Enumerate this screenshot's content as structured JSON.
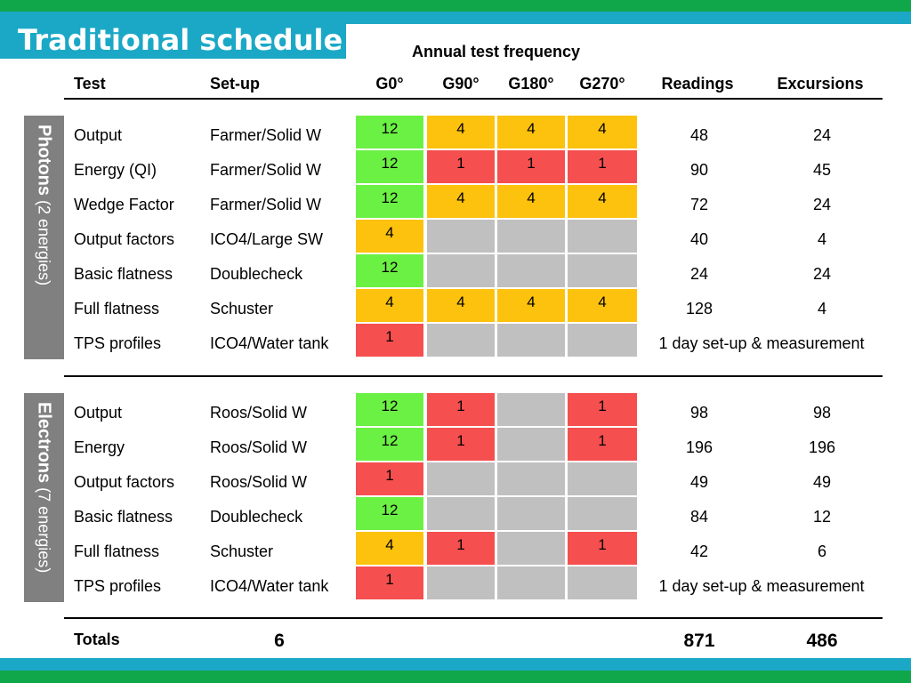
{
  "title": "Traditional schedule",
  "freq_title": "Annual test frequency",
  "headers": {
    "test": "Test",
    "setup": "Set-up",
    "g0": "G0°",
    "g90": "G90°",
    "g180": "G180°",
    "g270": "G270°",
    "readings": "Readings",
    "excursions": "Excursions"
  },
  "colors": {
    "green": "#6bf044",
    "yellow": "#fdc20d",
    "red": "#f54f4f",
    "gray": "#c0c0c0",
    "teal": "#1ba8c6",
    "brand_green": "#10a64a",
    "side": "#808080"
  },
  "photons": {
    "label": "Photons",
    "sub": "(2 energies)",
    "rows": [
      {
        "test": "Output",
        "setup": "Farmer/Solid W",
        "freq": [
          [
            "12",
            "green"
          ],
          [
            "4",
            "yellow"
          ],
          [
            "4",
            "yellow"
          ],
          [
            "4",
            "yellow"
          ]
        ],
        "readings": "48",
        "excursions": "24"
      },
      {
        "test": "Energy (QI)",
        "setup": "Farmer/Solid W",
        "freq": [
          [
            "12",
            "green"
          ],
          [
            "1",
            "red"
          ],
          [
            "1",
            "red"
          ],
          [
            "1",
            "red"
          ]
        ],
        "readings": "90",
        "excursions": "45"
      },
      {
        "test": "Wedge Factor",
        "setup": "Farmer/Solid W",
        "freq": [
          [
            "12",
            "green"
          ],
          [
            "4",
            "yellow"
          ],
          [
            "4",
            "yellow"
          ],
          [
            "4",
            "yellow"
          ]
        ],
        "readings": "72",
        "excursions": "24"
      },
      {
        "test": "Output factors",
        "setup": "ICO4/Large SW",
        "freq": [
          [
            "4",
            "yellow"
          ],
          [
            "",
            "gray"
          ],
          [
            "",
            "gray"
          ],
          [
            "",
            "gray"
          ]
        ],
        "readings": "40",
        "excursions": "4"
      },
      {
        "test": "Basic flatness",
        "setup": "Doublecheck",
        "freq": [
          [
            "12",
            "green"
          ],
          [
            "",
            "gray"
          ],
          [
            "",
            "gray"
          ],
          [
            "",
            "gray"
          ]
        ],
        "readings": "24",
        "excursions": "24"
      },
      {
        "test": "Full flatness",
        "setup": "Schuster",
        "freq": [
          [
            "4",
            "yellow"
          ],
          [
            "4",
            "yellow"
          ],
          [
            "4",
            "yellow"
          ],
          [
            "4",
            "yellow"
          ]
        ],
        "readings": "128",
        "excursions": "4"
      },
      {
        "test": "TPS profiles",
        "setup": "ICO4/Water tank",
        "freq": [
          [
            "1",
            "red"
          ],
          [
            "",
            "gray"
          ],
          [
            "",
            "gray"
          ],
          [
            "",
            "gray"
          ]
        ],
        "note": "1 day set-up & measurement"
      }
    ]
  },
  "electrons": {
    "label": "Electrons",
    "sub": "(7 energies)",
    "rows": [
      {
        "test": "Output",
        "setup": "Roos/Solid W",
        "freq": [
          [
            "12",
            "green"
          ],
          [
            "1",
            "red"
          ],
          [
            "",
            "gray"
          ],
          [
            "1",
            "red"
          ]
        ],
        "readings": "98",
        "excursions": "98"
      },
      {
        "test": "Energy",
        "setup": "Roos/Solid W",
        "freq": [
          [
            "12",
            "green"
          ],
          [
            "1",
            "red"
          ],
          [
            "",
            "gray"
          ],
          [
            "1",
            "red"
          ]
        ],
        "readings": "196",
        "excursions": "196"
      },
      {
        "test": "Output factors",
        "setup": "Roos/Solid W",
        "freq": [
          [
            "1",
            "red"
          ],
          [
            "",
            "gray"
          ],
          [
            "",
            "gray"
          ],
          [
            "",
            "gray"
          ]
        ],
        "readings": "49",
        "excursions": "49"
      },
      {
        "test": "Basic flatness",
        "setup": "Doublecheck",
        "freq": [
          [
            "12",
            "green"
          ],
          [
            "",
            "gray"
          ],
          [
            "",
            "gray"
          ],
          [
            "",
            "gray"
          ]
        ],
        "readings": "84",
        "excursions": "12"
      },
      {
        "test": "Full flatness",
        "setup": "Schuster",
        "freq": [
          [
            "4",
            "yellow"
          ],
          [
            "1",
            "red"
          ],
          [
            "",
            "gray"
          ],
          [
            "1",
            "red"
          ]
        ],
        "readings": "42",
        "excursions": "6"
      },
      {
        "test": "TPS profiles",
        "setup": "ICO4/Water tank",
        "freq": [
          [
            "1",
            "red"
          ],
          [
            "",
            "gray"
          ],
          [
            "",
            "gray"
          ],
          [
            "",
            "gray"
          ]
        ],
        "note": "1 day set-up & measurement"
      }
    ]
  },
  "totals": {
    "label": "Totals",
    "tests": "6",
    "readings": "871",
    "excursions": "486"
  }
}
